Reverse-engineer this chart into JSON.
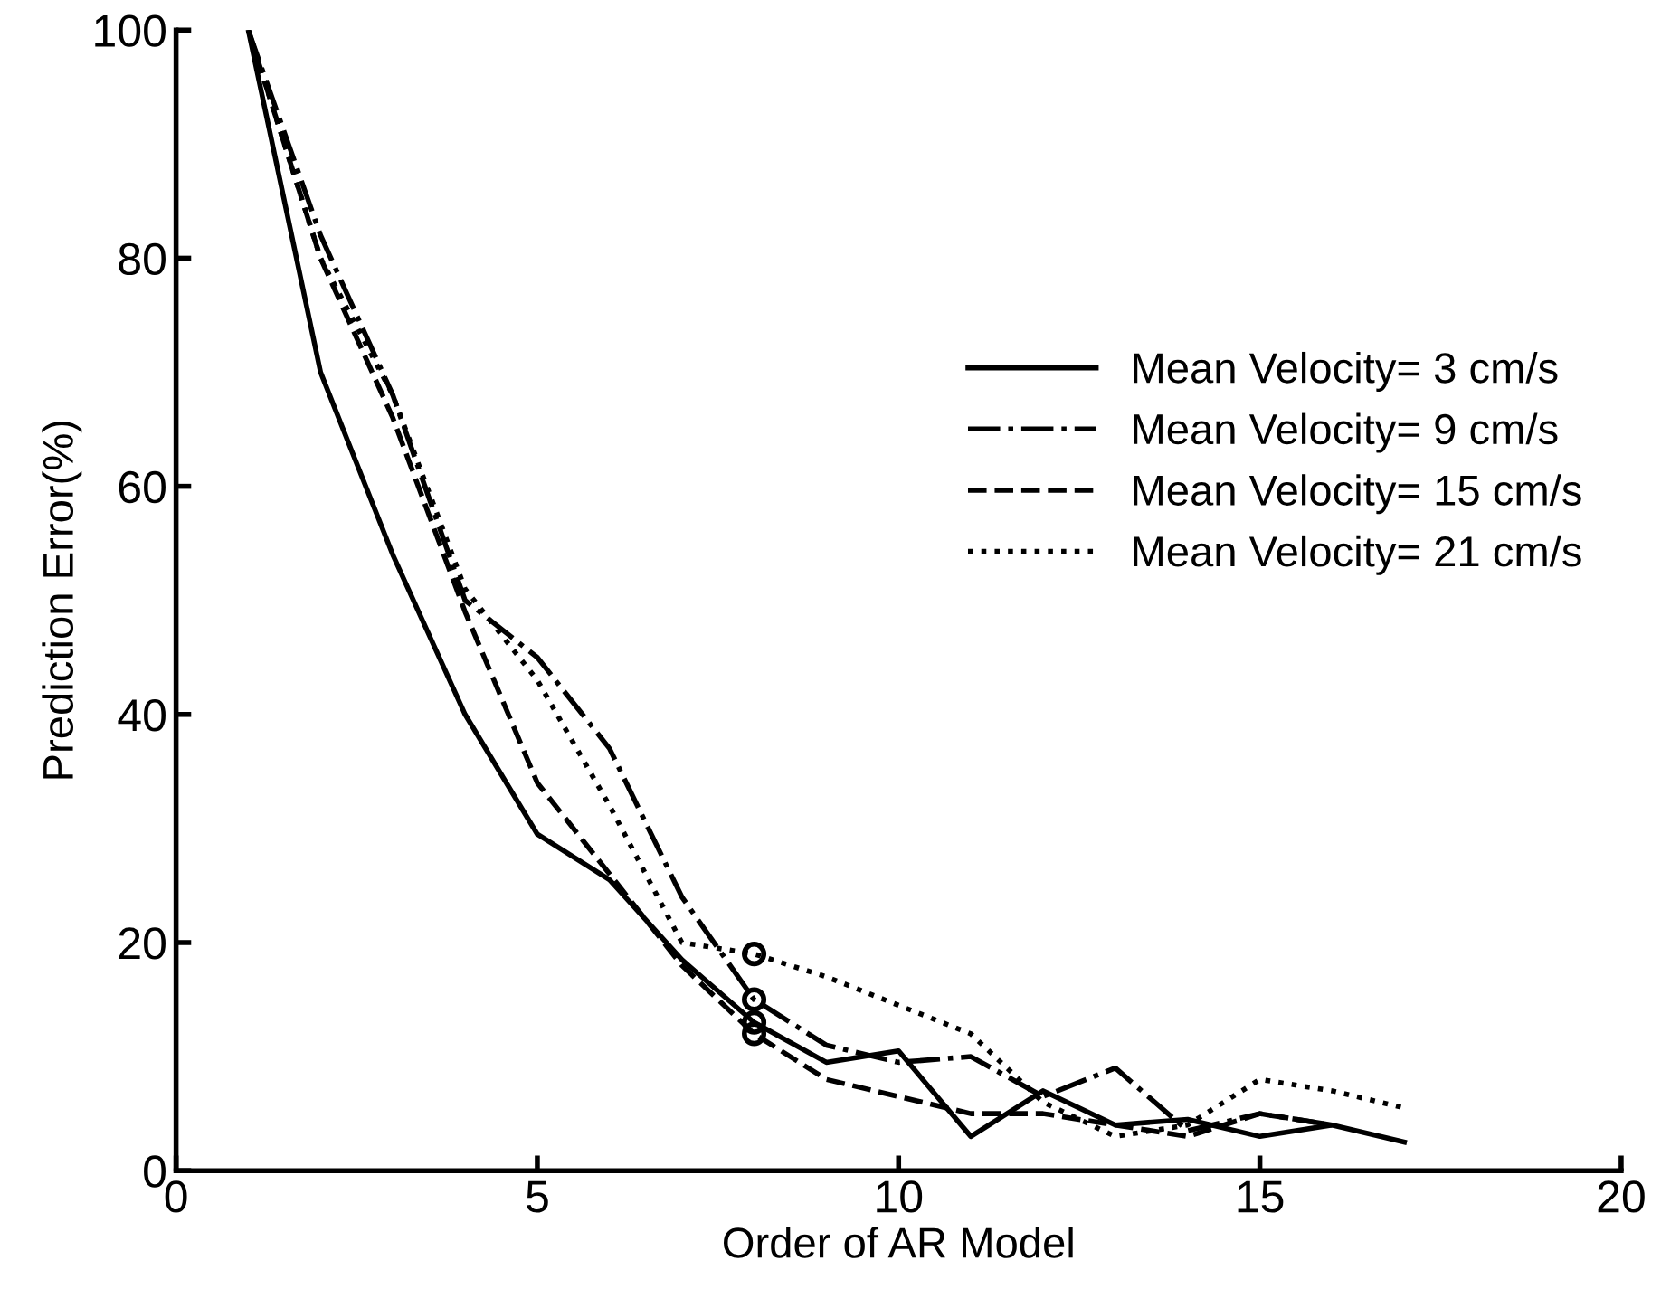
{
  "chart_data": {
    "type": "line",
    "xlabel": "Order of AR Model",
    "ylabel": "Prediction Error(%)",
    "xlim": [
      0,
      20
    ],
    "ylim": [
      0,
      100
    ],
    "xticks": [
      0,
      5,
      10,
      15,
      20
    ],
    "yticks": [
      0,
      20,
      40,
      60,
      80,
      100
    ],
    "grid": false,
    "legend": "right",
    "marker": "none",
    "series": [
      {
        "name": "Mean Velocity= 3 cm/s",
        "color": "#000000",
        "line_style": "solid",
        "x": [
          1,
          2,
          3,
          4,
          5,
          6,
          7,
          8,
          9,
          10,
          11,
          12,
          13,
          14,
          15,
          16,
          17
        ],
        "values": [
          100,
          70,
          54,
          40,
          29.5,
          25.5,
          18.5,
          13,
          9.5,
          10.5,
          3,
          7,
          4,
          4.5,
          3,
          4,
          2.5
        ]
      },
      {
        "name": "Mean Velocity= 9 cm/s",
        "color": "#000000",
        "line_style": "dashdot",
        "x": [
          1,
          2,
          3,
          4,
          5,
          6,
          7,
          8,
          9,
          10,
          11,
          12,
          13,
          14,
          15,
          16
        ],
        "values": [
          100,
          82,
          68,
          50,
          45,
          37,
          24,
          15,
          11,
          9.5,
          10,
          6.5,
          9,
          3.5,
          5,
          4
        ]
      },
      {
        "name": "Mean Velocity= 15 cm/s",
        "color": "#000000",
        "line_style": "dashed",
        "x": [
          1,
          2,
          3,
          4,
          5,
          6,
          7,
          8,
          9,
          10,
          11,
          12,
          13,
          14,
          15,
          16
        ],
        "values": [
          100,
          80,
          66,
          49,
          34,
          26,
          18,
          12,
          8,
          6.5,
          5,
          5,
          4,
          3,
          5,
          4
        ]
      },
      {
        "name": "Mean Velocity= 21 cm/s",
        "color": "#000000",
        "line_style": "dotted",
        "x": [
          1,
          2,
          3,
          4,
          5,
          6,
          7,
          8,
          9,
          10,
          11,
          12,
          13,
          14,
          15,
          16,
          17
        ],
        "values": [
          100,
          80,
          68,
          51,
          43,
          32,
          20,
          19,
          17,
          14.5,
          12,
          6,
          3,
          4,
          8,
          7,
          5.5
        ]
      },
      {
        "type": "scatter",
        "color": "#000000",
        "marker": "circle",
        "x": [
          8,
          8,
          8,
          8
        ],
        "values": [
          19,
          15,
          13,
          12
        ]
      }
    ]
  }
}
